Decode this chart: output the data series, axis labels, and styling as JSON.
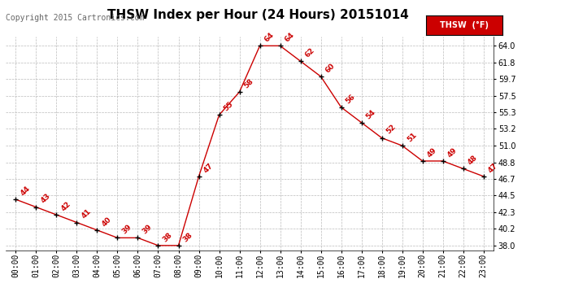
{
  "title": "THSW Index per Hour (24 Hours) 20151014",
  "copyright": "Copyright 2015 Cartronics.com",
  "legend_label": "THSW  (°F)",
  "hours": [
    0,
    1,
    2,
    3,
    4,
    5,
    6,
    7,
    8,
    9,
    10,
    11,
    12,
    13,
    14,
    15,
    16,
    17,
    18,
    19,
    20,
    21,
    22,
    23
  ],
  "values": [
    44,
    43,
    42,
    41,
    40,
    39,
    39,
    38,
    38,
    47,
    55,
    58,
    64,
    64,
    62,
    60,
    56,
    54,
    52,
    51,
    49,
    49,
    48,
    47
  ],
  "x_labels": [
    "00:00",
    "01:00",
    "02:00",
    "03:00",
    "04:00",
    "05:00",
    "06:00",
    "07:00",
    "08:00",
    "09:00",
    "10:00",
    "11:00",
    "12:00",
    "13:00",
    "14:00",
    "15:00",
    "16:00",
    "17:00",
    "18:00",
    "19:00",
    "20:00",
    "21:00",
    "22:00",
    "23:00"
  ],
  "y_ticks": [
    38.0,
    40.2,
    42.3,
    44.5,
    46.7,
    48.8,
    51.0,
    53.2,
    55.3,
    57.5,
    59.7,
    61.8,
    64.0
  ],
  "ylim": [
    37.4,
    65.2
  ],
  "line_color": "#cc0000",
  "marker_color": "#000000",
  "label_color": "#cc0000",
  "grid_color": "#bbbbbb",
  "background_color": "#ffffff",
  "title_fontsize": 11,
  "copyright_fontsize": 7,
  "label_fontsize": 6.5,
  "tick_fontsize": 7,
  "legend_bg": "#cc0000",
  "legend_text_color": "#ffffff"
}
